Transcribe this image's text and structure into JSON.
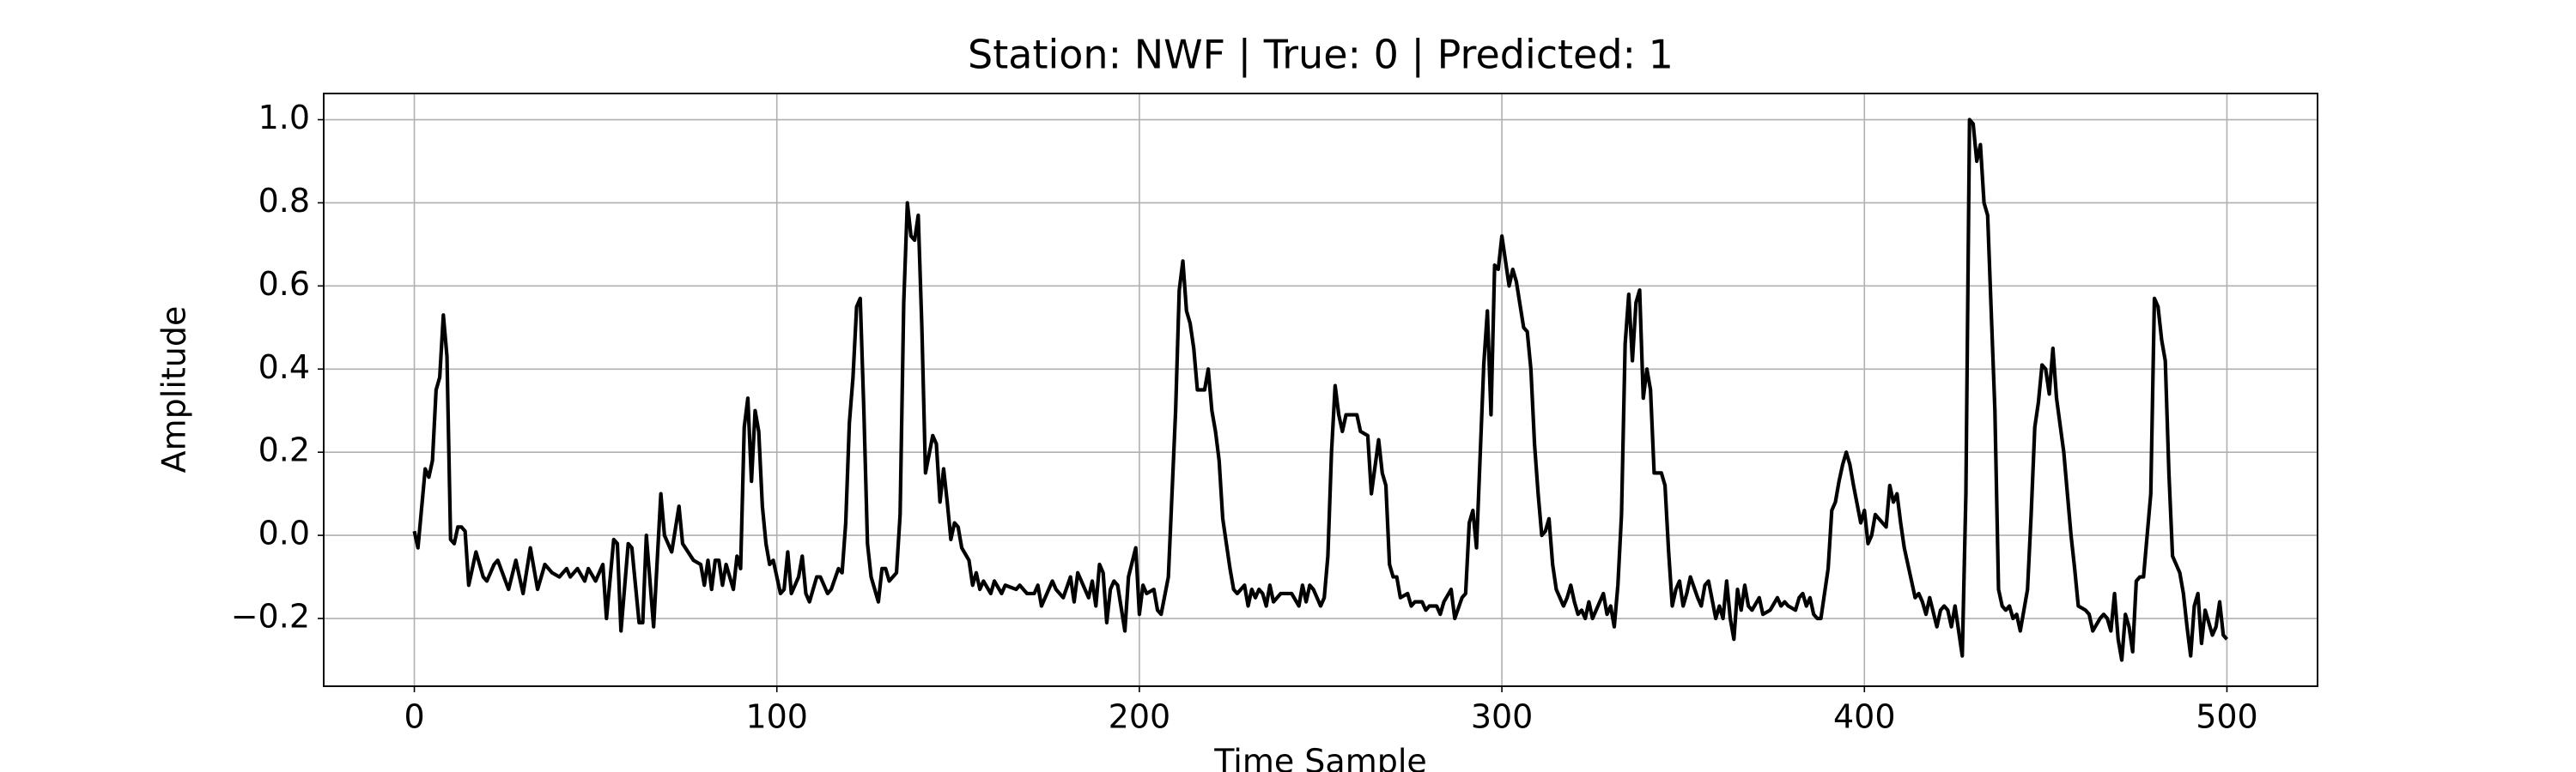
{
  "chart_data": {
    "type": "line",
    "title": "Station: NWF | True: 0 | Predicted: 1",
    "xlabel": "Time Sample",
    "ylabel": "Amplitude",
    "xlim": [
      -25,
      525
    ],
    "ylim": [
      -0.363,
      1.063
    ],
    "xticks": [
      0,
      100,
      200,
      300,
      400,
      500
    ],
    "yticks": [
      {
        "value": -0.2,
        "label": "−0.2"
      },
      {
        "value": 0,
        "label": "0.0"
      },
      0.2,
      0.4,
      0.6,
      0.8,
      {
        "value": 1.0,
        "label": "1.0"
      }
    ],
    "grid": true,
    "x": [
      0,
      1,
      3,
      4,
      5,
      6,
      7,
      8,
      9,
      10,
      11,
      12,
      13,
      14,
      15,
      17,
      19,
      20,
      22,
      23,
      26,
      28,
      30,
      32,
      34,
      36,
      38,
      40,
      42,
      43,
      45,
      47,
      48,
      50,
      52,
      53,
      55,
      56,
      57,
      59,
      60,
      62,
      63,
      64,
      66,
      68,
      69,
      71,
      73,
      74,
      77,
      79,
      80,
      81,
      82,
      83,
      84,
      85,
      86,
      88,
      89,
      90,
      91,
      92,
      93,
      94,
      95,
      96,
      97,
      98,
      99,
      101,
      102,
      103,
      104,
      106,
      107,
      108,
      109,
      111,
      112,
      114,
      115,
      117,
      118,
      119,
      120,
      121,
      122,
      123,
      124,
      125,
      126,
      128,
      129,
      130,
      131,
      133,
      134,
      135,
      136,
      137,
      138,
      139,
      140,
      141,
      143,
      144,
      145,
      146,
      147,
      148,
      149,
      150,
      151,
      153,
      154,
      155,
      156,
      157,
      159,
      160,
      162,
      163,
      166,
      167,
      169,
      171,
      172,
      173,
      176,
      177,
      179,
      181,
      182,
      183,
      186,
      187,
      188,
      189,
      190,
      191,
      192,
      193,
      194,
      196,
      197,
      199,
      200,
      201,
      202,
      204,
      205,
      206,
      208,
      209,
      210,
      211,
      212,
      213,
      214,
      215,
      216,
      218,
      219,
      220,
      221,
      222,
      223,
      224,
      225,
      226,
      227,
      229,
      230,
      231,
      232,
      233,
      234,
      235,
      236,
      237,
      239,
      240,
      242,
      244,
      245,
      246,
      247,
      248,
      250,
      251,
      252,
      253,
      254,
      255,
      256,
      257,
      260,
      261,
      263,
      264,
      266,
      267,
      268,
      269,
      270,
      271,
      272,
      274,
      275,
      276,
      278,
      279,
      280,
      282,
      283,
      284,
      286,
      287,
      289,
      290,
      291,
      292,
      293,
      295,
      296,
      297,
      298,
      299,
      300,
      301,
      302,
      303,
      304,
      306,
      307,
      308,
      309,
      310,
      311,
      312,
      313,
      314,
      315,
      317,
      318,
      319,
      320,
      321,
      322,
      323,
      324,
      325,
      328,
      329,
      330,
      331,
      332,
      333,
      334,
      335,
      336,
      337,
      338,
      339,
      340,
      341,
      342,
      344,
      345,
      346,
      347,
      348,
      349,
      350,
      351,
      352,
      354,
      355,
      356,
      357,
      359,
      360,
      361,
      362,
      363,
      364,
      365,
      366,
      367,
      368,
      369,
      371,
      372,
      374,
      376,
      377,
      378,
      379,
      381,
      382,
      383,
      384,
      385,
      386,
      387,
      388,
      390,
      391,
      392,
      393,
      394,
      395,
      396,
      397,
      399,
      400,
      401,
      402,
      403,
      404,
      406,
      407,
      408,
      409,
      410,
      411,
      413,
      414,
      415,
      416,
      417,
      418,
      420,
      421,
      422,
      423,
      424,
      425,
      427,
      428,
      429,
      430,
      431,
      432,
      433,
      434,
      436,
      437,
      438,
      439,
      440,
      441,
      442,
      443,
      445,
      446,
      447,
      448,
      449,
      450,
      451,
      452,
      453,
      455,
      456,
      457,
      458,
      459,
      461,
      462,
      463,
      465,
      466,
      467,
      468,
      469,
      470,
      471,
      472,
      473,
      474,
      475,
      476,
      477,
      479,
      480,
      481,
      482,
      483,
      484,
      485,
      487,
      488,
      489,
      490,
      491,
      492,
      493,
      494,
      496,
      497,
      498,
      499,
      500
    ],
    "series": [
      {
        "name": "Amplitude",
        "color": "#000000",
        "values": [
          0.01,
          -0.03,
          0.16,
          0.14,
          0.18,
          0.35,
          0.38,
          0.53,
          0.43,
          -0.01,
          -0.02,
          0.02,
          0.02,
          0.01,
          -0.12,
          -0.04,
          -0.1,
          -0.11,
          -0.07,
          -0.06,
          -0.13,
          -0.06,
          -0.14,
          -0.03,
          -0.13,
          -0.07,
          -0.09,
          -0.1,
          -0.08,
          -0.1,
          -0.08,
          -0.11,
          -0.08,
          -0.11,
          -0.07,
          -0.2,
          -0.01,
          -0.02,
          -0.23,
          -0.02,
          -0.03,
          -0.21,
          -0.21,
          0.0,
          -0.22,
          0.1,
          0.0,
          -0.04,
          0.07,
          -0.02,
          -0.06,
          -0.07,
          -0.12,
          -0.06,
          -0.13,
          -0.06,
          -0.06,
          -0.12,
          -0.07,
          -0.13,
          -0.05,
          -0.08,
          0.26,
          0.33,
          0.13,
          0.3,
          0.25,
          0.07,
          -0.02,
          -0.07,
          -0.06,
          -0.14,
          -0.13,
          -0.04,
          -0.14,
          -0.1,
          -0.05,
          -0.14,
          -0.16,
          -0.1,
          -0.1,
          -0.14,
          -0.13,
          -0.08,
          -0.09,
          0.03,
          0.27,
          0.38,
          0.55,
          0.57,
          0.3,
          -0.02,
          -0.1,
          -0.16,
          -0.08,
          -0.08,
          -0.11,
          -0.09,
          0.05,
          0.56,
          0.8,
          0.72,
          0.71,
          0.77,
          0.5,
          0.15,
          0.24,
          0.22,
          0.08,
          0.16,
          0.08,
          -0.01,
          0.03,
          0.02,
          -0.03,
          -0.06,
          -0.12,
          -0.09,
          -0.13,
          -0.11,
          -0.14,
          -0.11,
          -0.14,
          -0.12,
          -0.13,
          -0.12,
          -0.14,
          -0.14,
          -0.12,
          -0.17,
          -0.11,
          -0.13,
          -0.15,
          -0.1,
          -0.16,
          -0.09,
          -0.15,
          -0.11,
          -0.17,
          -0.07,
          -0.09,
          -0.21,
          -0.13,
          -0.11,
          -0.12,
          -0.23,
          -0.1,
          -0.03,
          -0.19,
          -0.12,
          -0.14,
          -0.13,
          -0.18,
          -0.19,
          -0.1,
          0.1,
          0.3,
          0.59,
          0.66,
          0.54,
          0.51,
          0.45,
          0.35,
          0.35,
          0.4,
          0.3,
          0.25,
          0.18,
          0.04,
          -0.02,
          -0.08,
          -0.13,
          -0.14,
          -0.12,
          -0.17,
          -0.13,
          -0.15,
          -0.13,
          -0.14,
          -0.17,
          -0.12,
          -0.16,
          -0.14,
          -0.14,
          -0.14,
          -0.17,
          -0.12,
          -0.16,
          -0.12,
          -0.13,
          -0.17,
          -0.15,
          -0.05,
          0.2,
          0.36,
          0.29,
          0.25,
          0.29,
          0.29,
          0.25,
          0.24,
          0.1,
          0.23,
          0.15,
          0.12,
          -0.07,
          -0.1,
          -0.1,
          -0.15,
          -0.14,
          -0.17,
          -0.16,
          -0.16,
          -0.18,
          -0.17,
          -0.17,
          -0.19,
          -0.16,
          -0.13,
          -0.2,
          -0.15,
          -0.14,
          0.03,
          0.06,
          -0.03,
          0.41,
          0.54,
          0.29,
          0.65,
          0.64,
          0.72,
          0.66,
          0.6,
          0.64,
          0.61,
          0.5,
          0.49,
          0.4,
          0.22,
          0.1,
          0.0,
          0.01,
          0.04,
          -0.07,
          -0.13,
          -0.17,
          -0.15,
          -0.12,
          -0.16,
          -0.19,
          -0.18,
          -0.2,
          -0.16,
          -0.2,
          -0.14,
          -0.19,
          -0.17,
          -0.22,
          -0.12,
          0.05,
          0.46,
          0.58,
          0.42,
          0.56,
          0.59,
          0.33,
          0.4,
          0.35,
          0.15,
          0.15,
          0.12,
          -0.04,
          -0.17,
          -0.13,
          -0.11,
          -0.17,
          -0.14,
          -0.1,
          -0.15,
          -0.17,
          -0.12,
          -0.11,
          -0.2,
          -0.17,
          -0.2,
          -0.11,
          -0.2,
          -0.25,
          -0.13,
          -0.18,
          -0.12,
          -0.17,
          -0.18,
          -0.15,
          -0.19,
          -0.18,
          -0.15,
          -0.17,
          -0.16,
          -0.17,
          -0.18,
          -0.15,
          -0.14,
          -0.17,
          -0.15,
          -0.19,
          -0.2,
          -0.2,
          -0.08,
          0.06,
          0.08,
          0.13,
          0.17,
          0.2,
          0.17,
          0.12,
          0.03,
          0.06,
          -0.02,
          0.0,
          0.05,
          0.04,
          0.02,
          0.12,
          0.08,
          0.1,
          0.03,
          -0.03,
          -0.11,
          -0.15,
          -0.14,
          -0.16,
          -0.19,
          -0.15,
          -0.22,
          -0.18,
          -0.17,
          -0.18,
          -0.22,
          -0.17,
          -0.29,
          0.1,
          1.0,
          0.99,
          0.9,
          0.94,
          0.8,
          0.77,
          0.3,
          -0.13,
          -0.17,
          -0.18,
          -0.17,
          -0.2,
          -0.19,
          -0.23,
          -0.13,
          0.05,
          0.26,
          0.32,
          0.41,
          0.4,
          0.34,
          0.45,
          0.33,
          0.2,
          0.1,
          0.0,
          -0.08,
          -0.17,
          -0.18,
          -0.19,
          -0.23,
          -0.2,
          -0.19,
          -0.2,
          -0.23,
          -0.14,
          -0.25,
          -0.3,
          -0.19,
          -0.22,
          -0.28,
          -0.11,
          -0.1,
          -0.1,
          0.1,
          0.57,
          0.55,
          0.47,
          0.42,
          0.15,
          -0.05,
          -0.09,
          -0.14,
          -0.22,
          -0.29,
          -0.17,
          -0.14,
          -0.26,
          -0.18,
          -0.24,
          -0.22,
          -0.16,
          -0.24,
          -0.25
        ]
      }
    ]
  }
}
